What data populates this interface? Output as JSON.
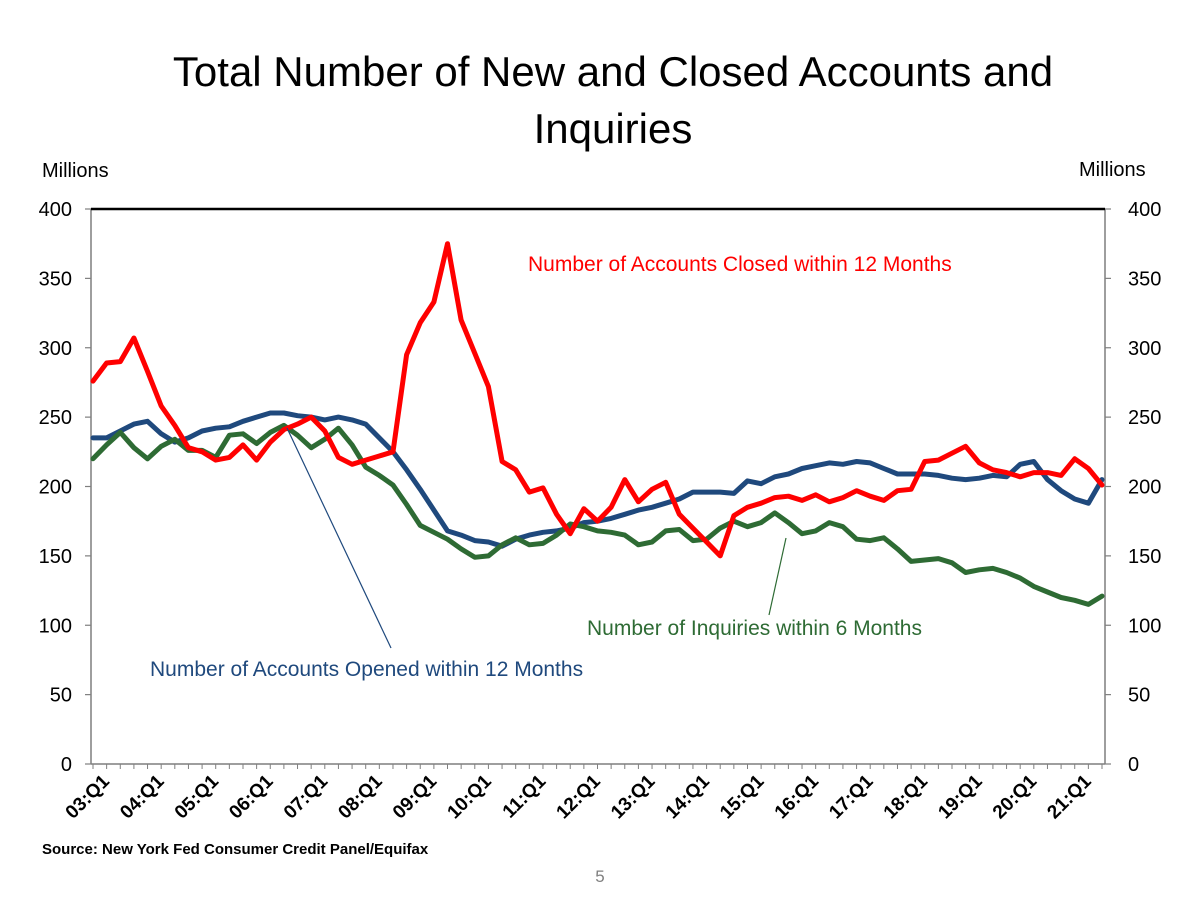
{
  "chart_data": {
    "type": "line",
    "title_line1": "Total Number of New and Closed Accounts and",
    "title_line2": "Inquiries",
    "y_unit_left": "Millions",
    "y_unit_right": "Millions",
    "ylim": [
      0,
      400
    ],
    "yticks": [
      "0",
      "50",
      "100",
      "150",
      "200",
      "250",
      "300",
      "350",
      "400"
    ],
    "xtick_labels": [
      "03:Q1",
      "04:Q1",
      "05:Q1",
      "06:Q1",
      "07:Q1",
      "08:Q1",
      "09:Q1",
      "10:Q1",
      "11:Q1",
      "12:Q1",
      "13:Q1",
      "14:Q1",
      "15:Q1",
      "16:Q1",
      "17:Q1",
      "18:Q1",
      "19:Q1",
      "20:Q1",
      "21:Q1"
    ],
    "quarters_count": 75,
    "series": [
      {
        "name": "Number of Accounts Closed within 12 Months",
        "color": "#ff0000",
        "values": [
          276,
          289,
          290,
          307,
          283,
          258,
          244,
          228,
          225,
          219,
          221,
          230,
          219,
          232,
          241,
          245,
          250,
          240,
          221,
          216,
          219,
          222,
          225,
          295,
          318,
          333,
          375,
          320,
          296,
          272,
          218,
          212,
          196,
          199,
          180,
          166,
          184,
          175,
          185,
          205,
          189,
          198,
          203,
          180,
          170,
          160,
          150,
          179,
          185,
          188,
          192,
          193,
          190,
          194,
          189,
          192,
          197,
          193,
          190,
          197,
          198,
          218,
          219,
          224,
          229,
          217,
          212,
          210,
          207,
          210,
          210,
          208,
          220,
          213,
          201
        ]
      },
      {
        "name": "Number of Accounts Opened within 12 Months",
        "color": "#1f497d",
        "values": [
          235,
          235,
          240,
          245,
          247,
          238,
          232,
          235,
          240,
          242,
          243,
          247,
          250,
          253,
          253,
          251,
          250,
          248,
          250,
          248,
          245,
          235,
          225,
          212,
          198,
          183,
          168,
          165,
          161,
          160,
          157,
          162,
          165,
          167,
          168,
          170,
          174,
          175,
          177,
          180,
          183,
          185,
          188,
          191,
          196,
          196,
          196,
          195,
          204,
          202,
          207,
          209,
          213,
          215,
          217,
          216,
          218,
          217,
          213,
          209,
          209,
          209,
          208,
          206,
          205,
          206,
          208,
          207,
          216,
          218,
          205,
          197,
          191,
          188,
          205
        ]
      },
      {
        "name": "Number of Inquiries within 6 Months",
        "color": "#2e6b34",
        "values": [
          220,
          230,
          239,
          228,
          220,
          229,
          234,
          226,
          226,
          221,
          237,
          238,
          231,
          239,
          244,
          237,
          228,
          234,
          242,
          230,
          214,
          208,
          201,
          187,
          172,
          167,
          162,
          155,
          149,
          150,
          158,
          163,
          158,
          159,
          165,
          173,
          171,
          168,
          167,
          165,
          158,
          160,
          168,
          169,
          161,
          162,
          170,
          175,
          171,
          174,
          181,
          174,
          166,
          168,
          174,
          171,
          162,
          161,
          163,
          155,
          146,
          147,
          148,
          145,
          138,
          140,
          141,
          138,
          134,
          128,
          124,
          120,
          118,
          115,
          121
        ]
      }
    ],
    "annotations": {
      "closed": "Number of Accounts Closed within 12 Months",
      "opened": "Number of Accounts Opened within 12 Months",
      "inquiries": "Number of Inquiries within 6 Months"
    },
    "grid": false,
    "legend": "none"
  },
  "footer": {
    "source": "Source: New York Fed Consumer Credit Panel/Equifax",
    "page_number": "5"
  }
}
